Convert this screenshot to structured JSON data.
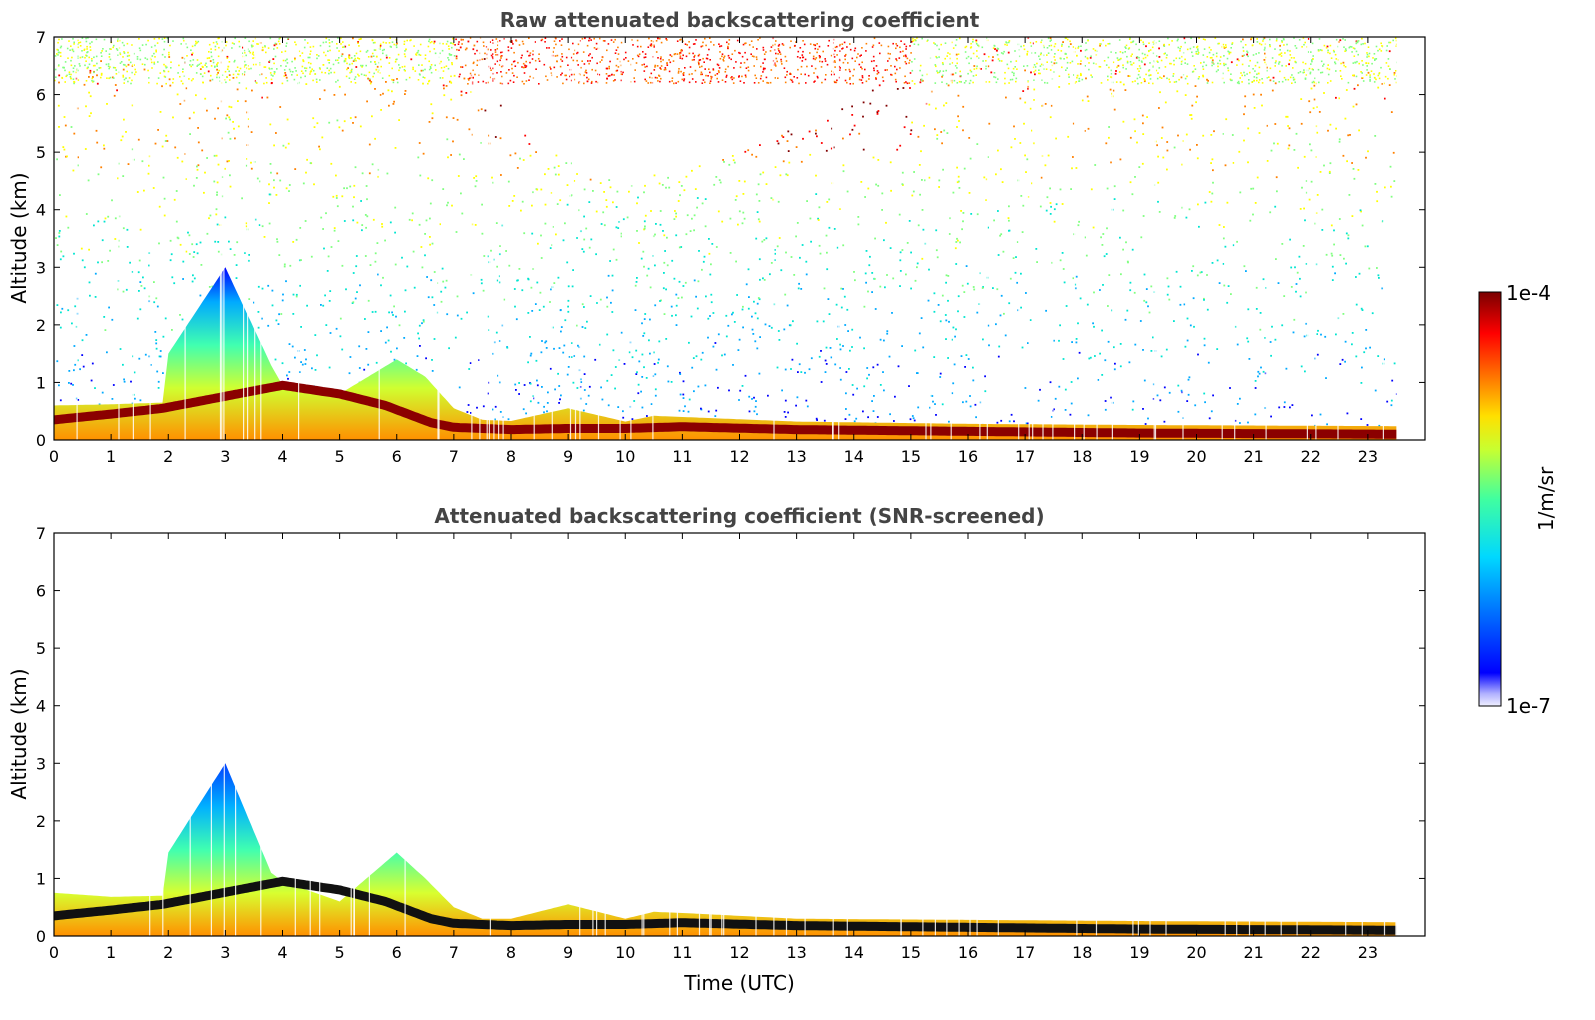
{
  "chart_data": [
    {
      "type": "heatmap",
      "title": "Raw attenuated backscattering coefficient",
      "xlabel": "",
      "ylabel": "Altitude (km)",
      "xlim": [
        0,
        24
      ],
      "ylim": [
        0,
        7
      ],
      "x_ticks": [
        "0",
        "1",
        "2",
        "3",
        "4",
        "5",
        "6",
        "7",
        "8",
        "9",
        "10",
        "11",
        "12",
        "13",
        "14",
        "15",
        "16",
        "17",
        "18",
        "19",
        "20",
        "21",
        "22",
        "23"
      ],
      "y_ticks": [
        "0",
        "1",
        "2",
        "3",
        "4",
        "5",
        "6",
        "7"
      ],
      "data_end_hour": 23.5,
      "boundary_layer_top_km": [
        [
          0,
          0.6
        ],
        [
          1,
          0.62
        ],
        [
          1.9,
          0.65
        ],
        [
          2,
          1.5
        ],
        [
          3,
          3.0
        ],
        [
          3.8,
          1.3
        ],
        [
          4,
          0.95
        ],
        [
          5,
          0.8
        ],
        [
          6,
          1.4
        ],
        [
          6.5,
          1.1
        ],
        [
          7,
          0.55
        ],
        [
          7.5,
          0.35
        ],
        [
          8,
          0.33
        ],
        [
          9,
          0.55
        ],
        [
          10,
          0.32
        ],
        [
          10.5,
          0.42
        ],
        [
          11,
          0.4
        ],
        [
          13,
          0.32
        ],
        [
          16,
          0.28
        ],
        [
          19,
          0.26
        ],
        [
          23.5,
          0.24
        ]
      ],
      "cloud_layer_km": [
        [
          0,
          0.35
        ],
        [
          1,
          0.45
        ],
        [
          1.9,
          0.55
        ],
        [
          4,
          0.95
        ],
        [
          5,
          0.8
        ],
        [
          5.8,
          0.6
        ],
        [
          6.6,
          0.3
        ],
        [
          7,
          0.22
        ],
        [
          8,
          0.18
        ],
        [
          9,
          0.2
        ],
        [
          10,
          0.2
        ],
        [
          11,
          0.23
        ],
        [
          13,
          0.18
        ],
        [
          16,
          0.15
        ],
        [
          19,
          0.12
        ],
        [
          23.5,
          0.1
        ]
      ],
      "noise_top_km": [
        [
          0,
          5.0
        ],
        [
          4,
          5.5
        ],
        [
          7,
          6.5
        ],
        [
          8,
          4.0
        ],
        [
          10,
          3.0
        ],
        [
          12,
          3.5
        ],
        [
          14,
          4.5
        ],
        [
          16,
          5.5
        ],
        [
          20,
          6.5
        ],
        [
          23.5,
          6.8
        ]
      ],
      "grid": false,
      "colorbar": {
        "label": "1/m/sr",
        "min": "1e-7",
        "max": "1e-4",
        "colormap": "jet"
      }
    },
    {
      "type": "heatmap",
      "title": "Attenuated backscattering coefficient (SNR-screened)",
      "xlabel": "Time (UTC)",
      "ylabel": "Altitude (km)",
      "xlim": [
        0,
        24
      ],
      "ylim": [
        0,
        7
      ],
      "x_ticks": [
        "0",
        "1",
        "2",
        "3",
        "4",
        "5",
        "6",
        "7",
        "8",
        "9",
        "10",
        "11",
        "12",
        "13",
        "14",
        "15",
        "16",
        "17",
        "18",
        "19",
        "20",
        "21",
        "22",
        "23"
      ],
      "y_ticks": [
        "0",
        "1",
        "2",
        "3",
        "4",
        "5",
        "6",
        "7"
      ],
      "data_end_hour": 23.5,
      "boundary_layer_top_km": [
        [
          0,
          0.75
        ],
        [
          1,
          0.68
        ],
        [
          1.9,
          0.7
        ],
        [
          2,
          1.45
        ],
        [
          3,
          3.0
        ],
        [
          3.8,
          1.1
        ],
        [
          4,
          0.95
        ],
        [
          5,
          0.6
        ],
        [
          6,
          1.45
        ],
        [
          6.5,
          1.0
        ],
        [
          7,
          0.5
        ],
        [
          7.5,
          0.3
        ],
        [
          8,
          0.3
        ],
        [
          9,
          0.55
        ],
        [
          10,
          0.3
        ],
        [
          10.5,
          0.42
        ],
        [
          11,
          0.4
        ],
        [
          13,
          0.3
        ],
        [
          16,
          0.28
        ],
        [
          19,
          0.26
        ],
        [
          23.5,
          0.24
        ]
      ],
      "cloud_layer_km": [
        [
          0,
          0.35
        ],
        [
          1,
          0.45
        ],
        [
          1.9,
          0.55
        ],
        [
          4,
          0.95
        ],
        [
          5,
          0.8
        ],
        [
          5.8,
          0.6
        ],
        [
          6.6,
          0.3
        ],
        [
          7,
          0.22
        ],
        [
          8,
          0.18
        ],
        [
          9,
          0.2
        ],
        [
          10,
          0.2
        ],
        [
          11,
          0.23
        ],
        [
          13,
          0.18
        ],
        [
          16,
          0.15
        ],
        [
          19,
          0.12
        ],
        [
          23.5,
          0.1
        ]
      ],
      "grid": false
    }
  ],
  "colors": {
    "title": "#444444",
    "axis": "#000000",
    "cloud_raw": "#8b0000",
    "cloud_screened": "#111111",
    "colormap": [
      "#0000ff",
      "#00aaff",
      "#00e5d0",
      "#80ff80",
      "#ffff00",
      "#ff8000",
      "#ff0000",
      "#800000"
    ]
  }
}
